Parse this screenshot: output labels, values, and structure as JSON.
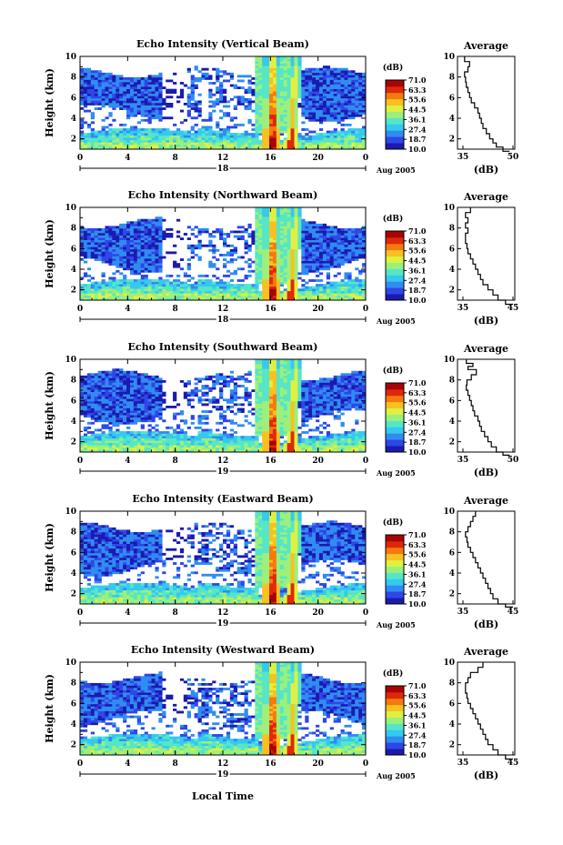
{
  "chart_data": {
    "type": "heatmap",
    "panels": [
      {
        "title": "Echo Intensity (Vertical Beam)",
        "day": "18",
        "avg_xlim": [
          35,
          50
        ],
        "avg_xticks": [
          "35",
          "50"
        ],
        "avg_profile": [
          {
            "h": 0.8,
            "db": 49
          },
          {
            "h": 1.2,
            "db": 47
          },
          {
            "h": 1.6,
            "db": 45
          },
          {
            "h": 2.0,
            "db": 44
          },
          {
            "h": 2.5,
            "db": 43
          },
          {
            "h": 3.0,
            "db": 42
          },
          {
            "h": 3.5,
            "db": 41
          },
          {
            "h": 4.0,
            "db": 40.5
          },
          {
            "h": 4.5,
            "db": 40
          },
          {
            "h": 5.0,
            "db": 39.5
          },
          {
            "h": 5.5,
            "db": 38.5
          },
          {
            "h": 6.0,
            "db": 37.5
          },
          {
            "h": 6.5,
            "db": 37
          },
          {
            "h": 7.0,
            "db": 36.5
          },
          {
            "h": 7.5,
            "db": 36
          },
          {
            "h": 8.0,
            "db": 35.8
          },
          {
            "h": 8.5,
            "db": 35.5
          },
          {
            "h": 9.0,
            "db": 36.5
          },
          {
            "h": 9.5,
            "db": 37
          },
          {
            "h": 10.0,
            "db": 35.5
          }
        ]
      },
      {
        "title": "Echo Intensity (Northward Beam)",
        "day": "18",
        "avg_xlim": [
          35,
          45
        ],
        "avg_xticks": [
          "35",
          "45"
        ],
        "avg_profile": [
          {
            "h": 0.6,
            "db": 45
          },
          {
            "h": 1.0,
            "db": 43.5
          },
          {
            "h": 1.5,
            "db": 42
          },
          {
            "h": 2.0,
            "db": 41
          },
          {
            "h": 2.5,
            "db": 40
          },
          {
            "h": 3.0,
            "db": 39
          },
          {
            "h": 3.5,
            "db": 38.5
          },
          {
            "h": 4.0,
            "db": 38
          },
          {
            "h": 4.5,
            "db": 37.5
          },
          {
            "h": 5.0,
            "db": 37
          },
          {
            "h": 5.5,
            "db": 36.5
          },
          {
            "h": 6.0,
            "db": 36
          },
          {
            "h": 6.5,
            "db": 35.8
          },
          {
            "h": 7.0,
            "db": 35.5
          },
          {
            "h": 7.5,
            "db": 35.5
          },
          {
            "h": 8.0,
            "db": 36
          },
          {
            "h": 8.5,
            "db": 35.5
          },
          {
            "h": 9.0,
            "db": 36
          },
          {
            "h": 9.5,
            "db": 35.5
          },
          {
            "h": 10.0,
            "db": 36.5
          }
        ]
      },
      {
        "title": "Echo Intensity (Southward Beam)",
        "day": "19",
        "avg_xlim": [
          35,
          50
        ],
        "avg_xticks": [
          "35",
          "50"
        ],
        "avg_profile": [
          {
            "h": 0.7,
            "db": 49
          },
          {
            "h": 1.0,
            "db": 47
          },
          {
            "h": 1.5,
            "db": 45
          },
          {
            "h": 2.0,
            "db": 43.5
          },
          {
            "h": 2.5,
            "db": 42.5
          },
          {
            "h": 3.0,
            "db": 41.5
          },
          {
            "h": 3.5,
            "db": 40.5
          },
          {
            "h": 4.0,
            "db": 40
          },
          {
            "h": 4.5,
            "db": 39.5
          },
          {
            "h": 5.0,
            "db": 38.5
          },
          {
            "h": 5.5,
            "db": 38
          },
          {
            "h": 6.0,
            "db": 37.5
          },
          {
            "h": 6.5,
            "db": 37
          },
          {
            "h": 7.0,
            "db": 36.5
          },
          {
            "h": 7.5,
            "db": 36
          },
          {
            "h": 8.0,
            "db": 36.2
          },
          {
            "h": 8.5,
            "db": 37.5
          },
          {
            "h": 9.0,
            "db": 39
          },
          {
            "h": 9.3,
            "db": 36.5
          },
          {
            "h": 9.6,
            "db": 38
          },
          {
            "h": 10.0,
            "db": 36
          }
        ]
      },
      {
        "title": "Echo Intensity (Eastward Beam)",
        "day": "19",
        "avg_xlim": [
          35,
          45
        ],
        "avg_xticks": [
          "35",
          "45"
        ],
        "avg_profile": [
          {
            "h": 0.7,
            "db": 45
          },
          {
            "h": 1.0,
            "db": 43.5
          },
          {
            "h": 1.5,
            "db": 42
          },
          {
            "h": 2.0,
            "db": 41
          },
          {
            "h": 2.5,
            "db": 40.5
          },
          {
            "h": 3.0,
            "db": 40
          },
          {
            "h": 3.5,
            "db": 39.5
          },
          {
            "h": 4.0,
            "db": 39
          },
          {
            "h": 4.5,
            "db": 38.5
          },
          {
            "h": 5.0,
            "db": 38
          },
          {
            "h": 5.5,
            "db": 37.5
          },
          {
            "h": 6.0,
            "db": 37
          },
          {
            "h": 6.5,
            "db": 36.5
          },
          {
            "h": 7.0,
            "db": 36
          },
          {
            "h": 7.5,
            "db": 35.8
          },
          {
            "h": 8.0,
            "db": 35.5
          },
          {
            "h": 8.5,
            "db": 36
          },
          {
            "h": 9.0,
            "db": 36.5
          },
          {
            "h": 9.5,
            "db": 37
          },
          {
            "h": 10.0,
            "db": 37.5
          }
        ]
      },
      {
        "title": "Echo Intensity (Westward Beam)",
        "day": "19",
        "avg_xlim": [
          35,
          45
        ],
        "avg_xticks": [
          "35",
          "45"
        ],
        "avg_profile": [
          {
            "h": 0.6,
            "db": 45
          },
          {
            "h": 1.0,
            "db": 43.5
          },
          {
            "h": 1.5,
            "db": 42
          },
          {
            "h": 2.0,
            "db": 41
          },
          {
            "h": 2.5,
            "db": 40
          },
          {
            "h": 3.0,
            "db": 39.5
          },
          {
            "h": 3.5,
            "db": 39
          },
          {
            "h": 4.0,
            "db": 38.5
          },
          {
            "h": 4.5,
            "db": 38
          },
          {
            "h": 5.0,
            "db": 37.5
          },
          {
            "h": 5.5,
            "db": 37
          },
          {
            "h": 6.0,
            "db": 36.5
          },
          {
            "h": 6.5,
            "db": 36
          },
          {
            "h": 7.0,
            "db": 35.8
          },
          {
            "h": 7.5,
            "db": 35.5
          },
          {
            "h": 8.0,
            "db": 35.5
          },
          {
            "h": 8.5,
            "db": 36
          },
          {
            "h": 9.0,
            "db": 36.5
          },
          {
            "h": 9.5,
            "db": 38
          },
          {
            "h": 10.0,
            "db": 39
          }
        ]
      }
    ],
    "x": {
      "label": "Local Time",
      "range": [
        0,
        24
      ],
      "ticks": [
        "0",
        "4",
        "8",
        "12",
        "16",
        "20",
        "0"
      ],
      "date": "Aug 2005"
    },
    "y": {
      "label": "Height (km)",
      "range": [
        1,
        10
      ],
      "ticks": [
        "2",
        "4",
        "6",
        "8",
        "10"
      ]
    },
    "colorbar": {
      "unit": "(dB)",
      "range": [
        10.0,
        71.0
      ],
      "ticks": [
        "71.0",
        "63.3",
        "55.6",
        "44.5",
        "36.1",
        "27.4",
        "18.7",
        "10.0"
      ],
      "colors": [
        "#1a1ab0",
        "#2f46e8",
        "#2f8cf0",
        "#35c8f0",
        "#55e6c8",
        "#9cf07a",
        "#e0f040",
        "#f8c020",
        "#f47a10",
        "#e02808",
        "#a80404"
      ]
    },
    "average": {
      "title": "Average",
      "xlabel": "(dB)",
      "yticks": [
        "2",
        "4",
        "6",
        "8",
        "10"
      ]
    },
    "features": {
      "rain_band_times_h": [
        16.1,
        17.9
      ],
      "low_layer_top_km": 2.5,
      "upper_layer_km": [
        5.5,
        8.5
      ]
    }
  }
}
